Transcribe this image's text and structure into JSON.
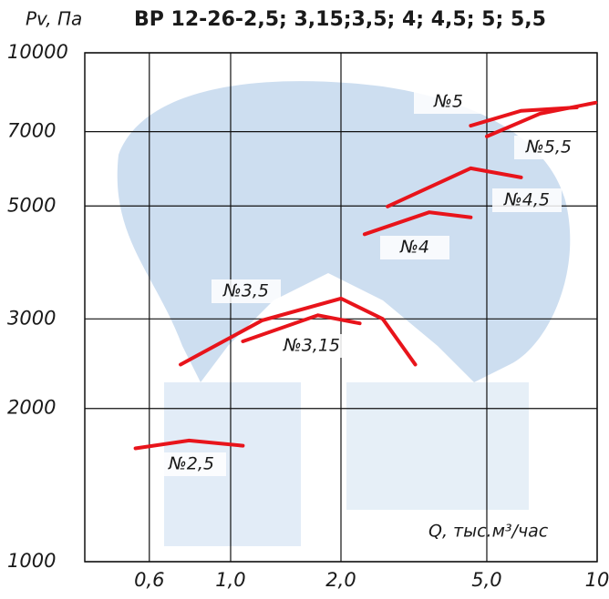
{
  "chart_data": {
    "type": "line",
    "title": "ВР 12-26-2,5; 3,15;3,5; 4; 4,5; 5; 5,5",
    "y_label": "Pv, Па",
    "x_label": "Q, тыс.м³/час",
    "x_scale": "log",
    "y_scale": "log",
    "grid": true,
    "xlim": [
      0.4,
      10
    ],
    "ylim": [
      1000,
      10000
    ],
    "xticks": [
      {
        "value": 0.6,
        "label": "0,6"
      },
      {
        "value": 1.0,
        "label": "1,0"
      },
      {
        "value": 2.0,
        "label": "2,0"
      },
      {
        "value": 5.0,
        "label": "5,0"
      },
      10
    ],
    "yticks": [
      1000,
      2000,
      3000,
      5000,
      7000,
      10000
    ],
    "series": [
      {
        "name": "№2,5",
        "color": "#e8141b",
        "x": [
          0.55,
          0.77,
          1.08
        ],
        "values": [
          1670,
          1730,
          1690
        ]
      },
      {
        "name": "№3,15",
        "color": "#e8141b",
        "x": [
          1.08,
          1.73,
          2.25
        ],
        "values": [
          2710,
          3050,
          2940
        ]
      },
      {
        "name": "№3,5",
        "color": "#e8141b",
        "x": [
          0.73,
          1.22,
          2.0,
          2.6,
          3.19
        ],
        "values": [
          2440,
          2980,
          3290,
          3000,
          2440
        ]
      },
      {
        "name": "№4",
        "color": "#e8141b",
        "x": [
          2.32,
          3.48,
          4.52
        ],
        "values": [
          4400,
          4860,
          4750
        ]
      },
      {
        "name": "№4,5",
        "color": "#e8141b",
        "x": [
          2.68,
          4.52,
          6.2
        ],
        "values": [
          4990,
          5930,
          5690
        ]
      },
      {
        "name": "№5",
        "color": "#e8141b",
        "x": [
          4.52,
          6.2,
          8.8
        ],
        "values": [
          7190,
          7690,
          7810
        ]
      },
      {
        "name": "№5,5",
        "color": "#e8141b",
        "x": [
          5.0,
          6.98,
          9.9
        ],
        "values": [
          6850,
          7590,
          7980
        ]
      }
    ]
  }
}
